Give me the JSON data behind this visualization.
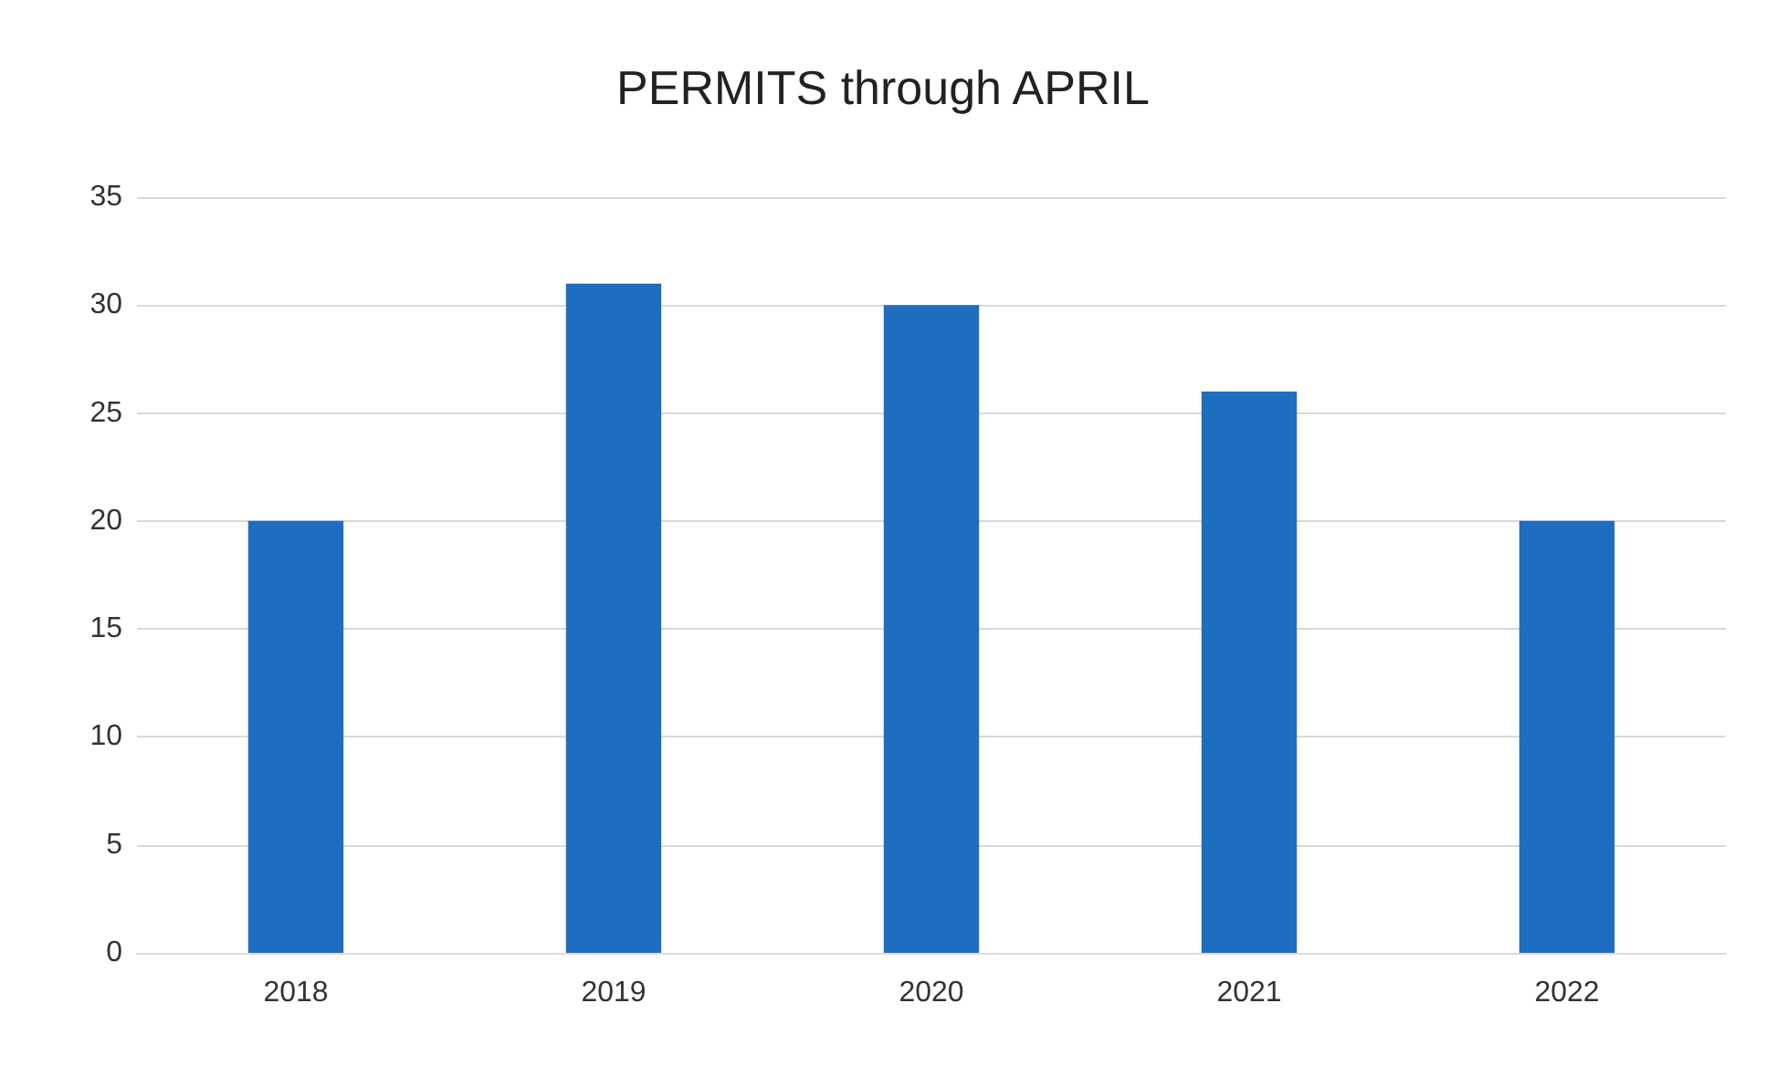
{
  "chart_data": {
    "type": "bar",
    "title": "PERMITS through APRIL",
    "categories": [
      "2018",
      "2019",
      "2020",
      "2021",
      "2022"
    ],
    "values": [
      20,
      31,
      30,
      26,
      20
    ],
    "color": "#1f6dc0",
    "ylim": [
      0,
      35
    ],
    "yticks": [
      0,
      5,
      10,
      15,
      20,
      25,
      30,
      35
    ],
    "grid": "y"
  }
}
